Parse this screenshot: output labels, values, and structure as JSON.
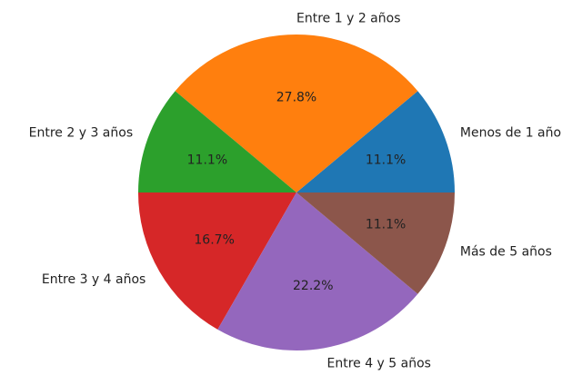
{
  "chart_data": {
    "type": "pie",
    "categories": [
      "Menos de 1 año",
      "Entre 1 y 2 años",
      "Entre 2 y 3 años",
      "Entre 3 y 4 años",
      "Entre 4 y 5 años",
      "Más de 5 años"
    ],
    "values": [
      11.1,
      27.8,
      11.1,
      16.7,
      22.2,
      11.1
    ],
    "value_labels": [
      "11.1%",
      "27.8%",
      "11.1%",
      "16.7%",
      "22.2%",
      "11.1%"
    ],
    "colors": [
      "#1f77b4",
      "#ff7f0e",
      "#2ca02c",
      "#d62728",
      "#9467bd",
      "#8c564b"
    ]
  }
}
